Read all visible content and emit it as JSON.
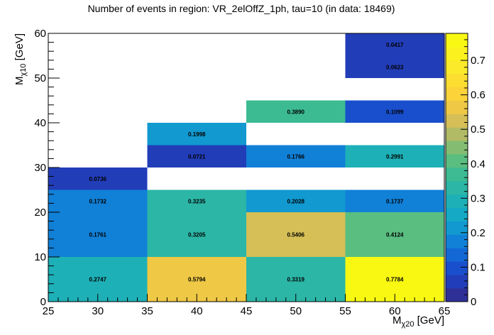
{
  "chart_data": {
    "type": "heatmap",
    "title": "Number of events in region: VR_2elOffZ_1ph, tau=10 (in data: 18469)",
    "xlabel": "M",
    "xlabel_sub": "χ20",
    "xlabel_unit": " [GeV]",
    "ylabel": "M",
    "ylabel_sub": "χ10",
    "ylabel_unit": " [GeV]",
    "xlim": [
      25,
      65
    ],
    "ylim": [
      0,
      60
    ],
    "x_ticks": [
      25,
      30,
      35,
      40,
      45,
      50,
      55,
      60,
      65
    ],
    "y_ticks": [
      0,
      10,
      20,
      30,
      40,
      50,
      60
    ],
    "colorbar": {
      "range": [
        0,
        0.7784
      ],
      "ticks": [
        0,
        0.1,
        0.2,
        0.3,
        0.4,
        0.5,
        0.6,
        0.7
      ],
      "tick_labels": [
        "0",
        "0.1",
        "0.2",
        "0.3",
        "0.4",
        "0.5",
        "0.6",
        "0.7"
      ]
    },
    "cells": [
      {
        "x0": 25,
        "x1": 35,
        "y0": 0,
        "y1": 10,
        "value": 0.2747,
        "label": "0.2747"
      },
      {
        "x0": 35,
        "x1": 45,
        "y0": 0,
        "y1": 10,
        "value": 0.5794,
        "label": "0.5794"
      },
      {
        "x0": 45,
        "x1": 55,
        "y0": 0,
        "y1": 10,
        "value": 0.3319,
        "label": "0.3319"
      },
      {
        "x0": 55,
        "x1": 65,
        "y0": 0,
        "y1": 10,
        "value": 0.7784,
        "label": "0.7784"
      },
      {
        "x0": 25,
        "x1": 35,
        "y0": 10,
        "y1": 20,
        "value": 0.1761,
        "label": "0.1761"
      },
      {
        "x0": 35,
        "x1": 45,
        "y0": 10,
        "y1": 20,
        "value": 0.3205,
        "label": "0.3205"
      },
      {
        "x0": 45,
        "x1": 55,
        "y0": 10,
        "y1": 20,
        "value": 0.5406,
        "label": "0.5406"
      },
      {
        "x0": 55,
        "x1": 65,
        "y0": 10,
        "y1": 20,
        "value": 0.4124,
        "label": "0.4124"
      },
      {
        "x0": 25,
        "x1": 35,
        "y0": 20,
        "y1": 25,
        "value": 0.1732,
        "label": "0.1732"
      },
      {
        "x0": 35,
        "x1": 45,
        "y0": 20,
        "y1": 25,
        "value": 0.3235,
        "label": "0.3235"
      },
      {
        "x0": 45,
        "x1": 55,
        "y0": 20,
        "y1": 25,
        "value": 0.2028,
        "label": "0.2028"
      },
      {
        "x0": 55,
        "x1": 65,
        "y0": 20,
        "y1": 25,
        "value": 0.1737,
        "label": "0.1737"
      },
      {
        "x0": 25,
        "x1": 35,
        "y0": 25,
        "y1": 30,
        "value": 0.0736,
        "label": "0.0736"
      },
      {
        "x0": 35,
        "x1": 45,
        "y0": 30,
        "y1": 35,
        "value": 0.0721,
        "label": "0.0721"
      },
      {
        "x0": 45,
        "x1": 55,
        "y0": 30,
        "y1": 35,
        "value": 0.1766,
        "label": "0.1766"
      },
      {
        "x0": 55,
        "x1": 65,
        "y0": 30,
        "y1": 35,
        "value": 0.2991,
        "label": "0.2991"
      },
      {
        "x0": 35,
        "x1": 45,
        "y0": 35,
        "y1": 40,
        "value": 0.1998,
        "label": "0.1998"
      },
      {
        "x0": 45,
        "x1": 55,
        "y0": 40,
        "y1": 45,
        "value": 0.389,
        "label": "0.3890"
      },
      {
        "x0": 55,
        "x1": 65,
        "y0": 40,
        "y1": 45,
        "value": 0.1099,
        "label": "0.1099"
      },
      {
        "x0": 55,
        "x1": 65,
        "y0": 50,
        "y1": 55,
        "value": 0.0623,
        "label": "0.0623"
      },
      {
        "x0": 55,
        "x1": 65,
        "y0": 55,
        "y1": 60,
        "value": 0.0417,
        "label": "0.0417"
      }
    ]
  }
}
